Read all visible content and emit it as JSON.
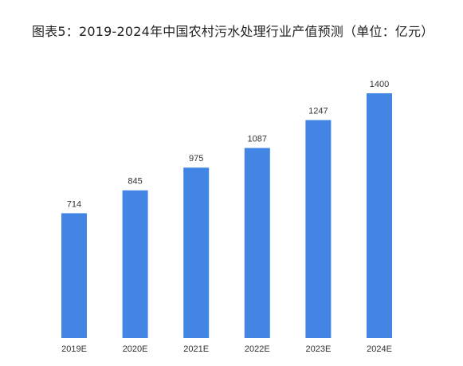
{
  "chart_data": {
    "type": "bar",
    "title": "图表5：2019-2024年中国农村污水处理行业产值预测（单位：亿元）",
    "categories": [
      "2019E",
      "2020E",
      "2021E",
      "2022E",
      "2023E",
      "2024E"
    ],
    "values": [
      714,
      845,
      975,
      1087,
      1247,
      1400
    ],
    "xlabel": "",
    "ylabel": "",
    "ylim": [
      0,
      1400
    ],
    "grid": false,
    "legend": "none",
    "bar_color": "#4285E4",
    "value_labels": [
      "714",
      "845",
      "975",
      "1087",
      "1247",
      "1400"
    ]
  }
}
